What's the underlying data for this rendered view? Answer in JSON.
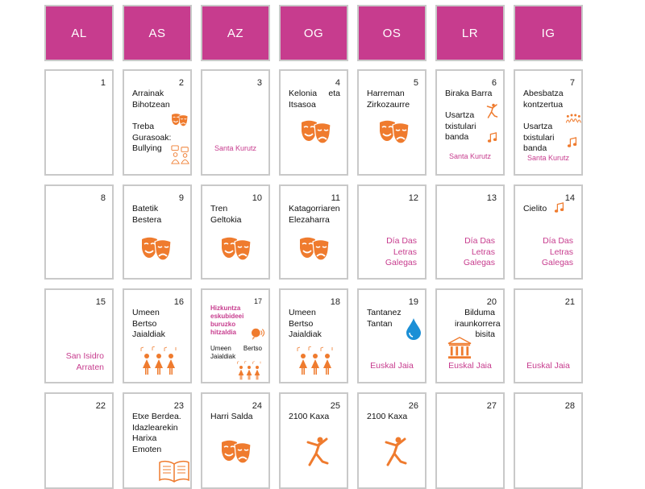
{
  "weekdays": [
    "AL",
    "AS",
    "AZ",
    "OG",
    "OS",
    "LR",
    "IG"
  ],
  "accent_color": "#c73c8e",
  "icon_color": "#ef7b2e",
  "rows": [
    {
      "days": [
        {
          "day": "1"
        },
        {
          "day": "2",
          "events": [
            "Arrainak Bihotzean",
            "Treba Gurasoak: Bullying"
          ],
          "icons": [
            "theater-masks-icon",
            "people-talking-icon"
          ]
        },
        {
          "day": "3",
          "location": "Santa Kurutz"
        },
        {
          "day": "4",
          "events": [
            "Kelonia eta Itsasoa"
          ],
          "icons": [
            "theater-masks-icon"
          ]
        },
        {
          "day": "5",
          "events": [
            "Harreman Zirkozaurre"
          ],
          "icons": [
            "theater-masks-icon"
          ]
        },
        {
          "day": "6",
          "events": [
            "Biraka Barra",
            "Usartza txistulari banda"
          ],
          "icons": [
            "dancer-icon",
            "music-note-icon"
          ],
          "location": "Santa Kurutz"
        },
        {
          "day": "7",
          "events": [
            "Abesbatza kontzertua",
            "Usartza txistulari banda"
          ],
          "icons": [
            "choir-icon",
            "music-note-icon"
          ],
          "location": "Santa Kurutz"
        }
      ]
    },
    {
      "days": [
        {
          "day": "8"
        },
        {
          "day": "9",
          "events": [
            "Batetik Bestera"
          ],
          "icons": [
            "theater-masks-icon"
          ]
        },
        {
          "day": "10",
          "events": [
            "Tren Geltokia"
          ],
          "icons": [
            "theater-masks-icon"
          ]
        },
        {
          "day": "11",
          "events": [
            "Katagorriaren Elezaharra"
          ],
          "icons": [
            "theater-masks-icon"
          ]
        },
        {
          "day": "12",
          "location": "Día Das Letras Galegas"
        },
        {
          "day": "13",
          "location": "Día Das Letras Galegas"
        },
        {
          "day": "14",
          "events": [
            "Cielito"
          ],
          "icons": [
            "music-note-icon"
          ],
          "location": "Día Das Letras Galegas"
        }
      ]
    },
    {
      "days": [
        {
          "day": "15",
          "location": "San Isidro Arraten"
        },
        {
          "day": "16",
          "events": [
            "Umeen Bertso Jaialdiak"
          ],
          "icons": [
            "singers-icon"
          ]
        },
        {
          "day": "17",
          "events": [
            "Hizkuntza eskubideei buruzko hitzaldia",
            "Umeen Bertso Jaialdiak"
          ],
          "icons": [
            "speaker-icon",
            "singers-icon"
          ]
        },
        {
          "day": "18",
          "events": [
            "Umeen Bertso Jaialdiak"
          ],
          "icons": [
            "singers-icon"
          ]
        },
        {
          "day": "19",
          "events": [
            "Tantanez Tantan"
          ],
          "icons": [
            "water-drop-icon"
          ],
          "location": "Euskal Jaia"
        },
        {
          "day": "20",
          "events": [
            "Bilduma iraunkorrera bisita"
          ],
          "icons": [
            "museum-icon"
          ],
          "location": "Euskal Jaia"
        },
        {
          "day": "21",
          "location": "Euskal Jaia"
        }
      ]
    },
    {
      "days": [
        {
          "day": "22"
        },
        {
          "day": "23",
          "events": [
            "Etxe Berdea. Idazlearekin Harixa Emoten"
          ],
          "icons": [
            "book-icon"
          ]
        },
        {
          "day": "24",
          "events": [
            "Harri Salda"
          ],
          "icons": [
            "theater-masks-icon"
          ]
        },
        {
          "day": "25",
          "events": [
            "2100 Kaxa"
          ],
          "icons": [
            "dancer-icon"
          ]
        },
        {
          "day": "26",
          "events": [
            "2100 Kaxa"
          ],
          "icons": [
            "dancer-icon"
          ]
        },
        {
          "day": "27"
        },
        {
          "day": "28"
        }
      ]
    }
  ]
}
